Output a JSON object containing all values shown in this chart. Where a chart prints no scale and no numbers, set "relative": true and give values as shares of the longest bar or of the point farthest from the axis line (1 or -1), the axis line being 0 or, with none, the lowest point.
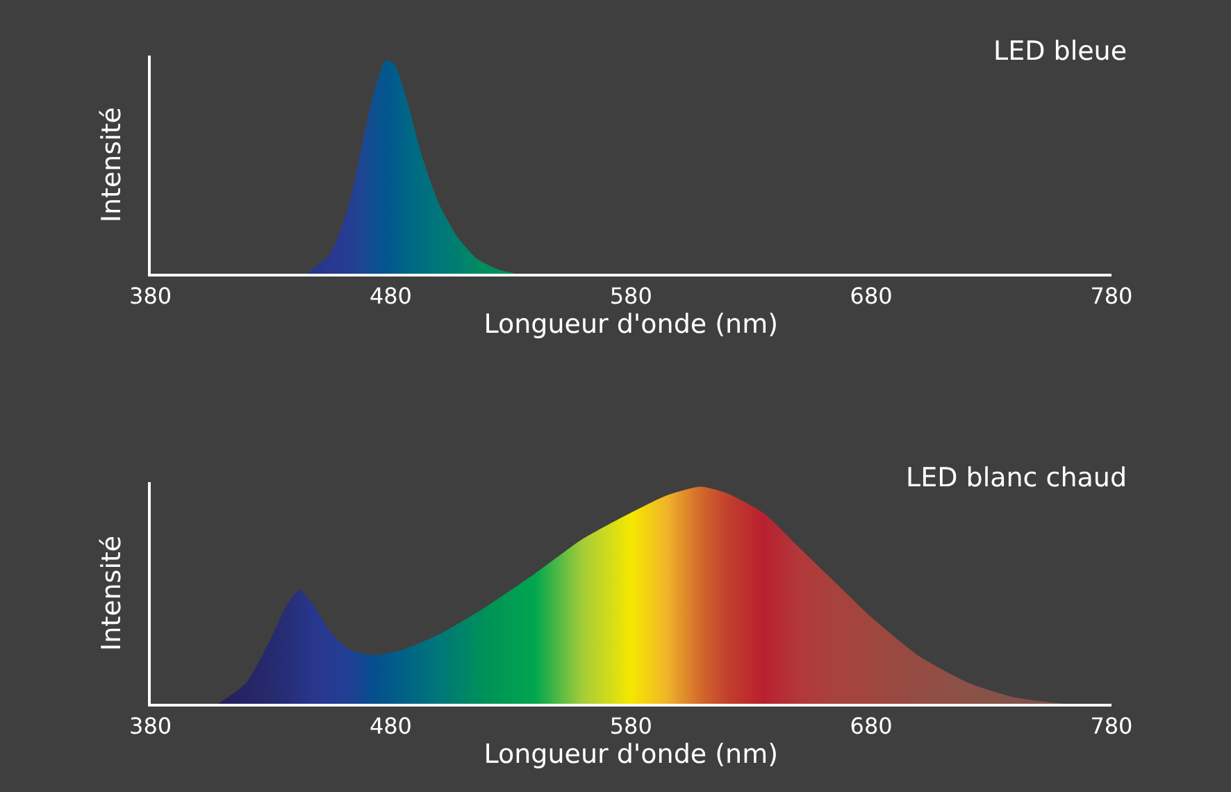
{
  "chart_data": [
    {
      "type": "area",
      "title": "LED bleue",
      "xlabel": "Longueur d'onde (nm)",
      "ylabel": "Intensité",
      "relative": true,
      "xlim": [
        380,
        780
      ],
      "xticks": [
        380,
        480,
        580,
        680,
        780
      ],
      "series": [
        {
          "x": [
            445,
            455,
            462,
            468,
            473,
            477,
            479,
            482,
            487,
            493,
            500,
            508,
            516,
            525,
            533
          ],
          "values": [
            0,
            0.1,
            0.3,
            0.6,
            0.85,
            0.98,
            1,
            0.97,
            0.8,
            0.55,
            0.33,
            0.17,
            0.07,
            0.02,
            0
          ],
          "colors": [
            "#27338a",
            "#27388f",
            "#263c92",
            "#1f4592",
            "#0f4f90",
            "#05558e",
            "#02588e",
            "#005d8c",
            "#006686",
            "#006e80",
            "#00767a",
            "#007f70",
            "#008a63",
            "#009158",
            "#009a55"
          ]
        }
      ]
    },
    {
      "type": "area",
      "title": "LED blanc chaud",
      "xlabel": "Longueur d'onde (nm)",
      "ylabel": "Intensité",
      "relative": true,
      "xlim": [
        380,
        780
      ],
      "xticks": [
        380,
        480,
        580,
        680,
        780
      ],
      "series": [
        {
          "x": [
            408,
            420,
            430,
            437,
            442,
            447,
            455,
            463,
            473,
            485,
            500,
            520,
            540,
            560,
            580,
            595,
            609,
            620,
            635,
            650,
            665,
            680,
            700,
            720,
            740,
            761
          ],
          "values": [
            0,
            0.1,
            0.3,
            0.46,
            0.525,
            0.47,
            0.33,
            0.25,
            0.225,
            0.25,
            0.32,
            0.45,
            0.6,
            0.76,
            0.88,
            0.96,
            1.0,
            0.97,
            0.88,
            0.72,
            0.56,
            0.4,
            0.22,
            0.1,
            0.03,
            0
          ],
          "colors": [
            "#241f5c",
            "#262466",
            "#262a6e",
            "#272e78",
            "#273282",
            "#27368a",
            "#273a92",
            "#203f94",
            "#054f8e",
            "#006186",
            "#00767a",
            "#009258",
            "#00a64f",
            "#a5cd39",
            "#f5e800",
            "#f0b429",
            "#d3682b",
            "#c2402d",
            "#b9202f",
            "#b2383a",
            "#a8423c",
            "#a0463e",
            "#944c43",
            "#8b5248",
            "#835249",
            "#7c5249"
          ]
        }
      ]
    }
  ]
}
